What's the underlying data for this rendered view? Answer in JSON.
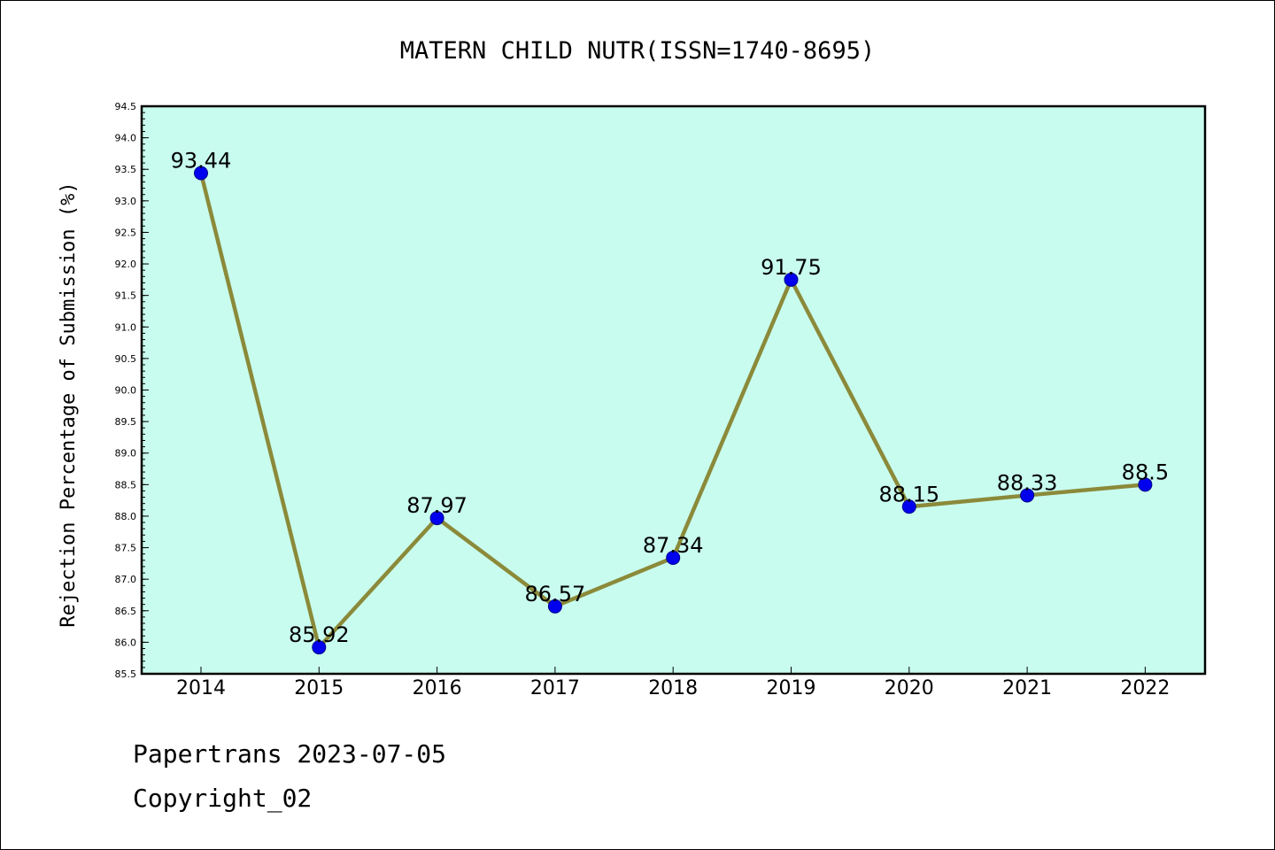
{
  "footer": {
    "line1": "Papertrans 2023-07-05",
    "line2": "Copyright_02"
  },
  "chart_data": {
    "type": "line",
    "title": "MATERN CHILD NUTR(ISSN=1740-8695)",
    "xlabel": "",
    "ylabel": "Rejection Percentage of Submission (%)",
    "categories": [
      "2014",
      "2015",
      "2016",
      "2017",
      "2018",
      "2019",
      "2020",
      "2021",
      "2022"
    ],
    "series": [
      {
        "values": [
          93.44,
          85.92,
          87.97,
          86.57,
          87.34,
          91.75,
          88.15,
          88.33,
          88.5
        ],
        "labels": [
          "93.44",
          "85.92",
          "87.97",
          "86.57",
          "87.34",
          "91.75",
          "88.15",
          "88.33",
          "88.5"
        ]
      }
    ],
    "ylim": [
      85.5,
      94.5
    ],
    "yticks": [
      "85.5",
      "86.0",
      "86.5",
      "87.0",
      "87.5",
      "88.0",
      "88.5",
      "89.0",
      "89.5",
      "90.0",
      "90.5",
      "91.0",
      "91.5",
      "92.0",
      "92.5",
      "93.0",
      "93.5",
      "94.0",
      "94.5"
    ],
    "grid": false,
    "colors": {
      "plot_background": "#c8fcee",
      "line": "#8b8a3a",
      "marker_fill": "#0000ee",
      "marker_edge": "#00008b"
    }
  }
}
